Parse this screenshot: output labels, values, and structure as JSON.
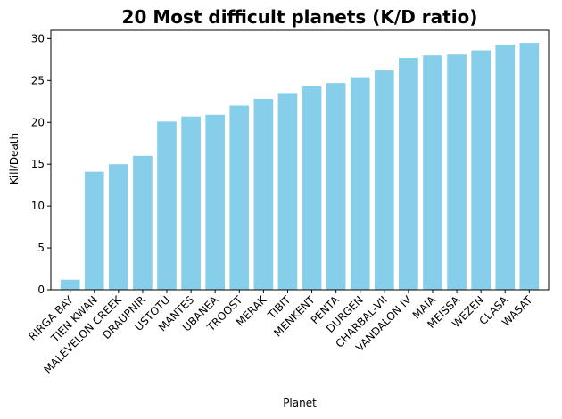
{
  "chart_data": {
    "type": "bar",
    "title": "20 Most difficult planets (K/D ratio)",
    "xlabel": "Planet",
    "ylabel": "Kill/Death",
    "categories": [
      "RIRGA BAY",
      "TIEN KWAN",
      "MALEVELON CREEK",
      "DRAUPNIR",
      "USTOTU",
      "MANTES",
      "UBANEA",
      "TROOST",
      "MERAK",
      "TIBIT",
      "MENKENT",
      "PENTA",
      "DURGEN",
      "CHARBAL-VII",
      "VANDALON IV",
      "MAIA",
      "MEISSA",
      "WEZEN",
      "CLASA",
      "WASAT"
    ],
    "values": [
      1.2,
      14.1,
      15.0,
      16.0,
      20.1,
      20.7,
      20.9,
      22.0,
      22.8,
      23.5,
      24.3,
      24.7,
      25.4,
      26.2,
      27.7,
      28.0,
      28.1,
      28.6,
      29.3,
      29.5
    ],
    "ylim": [
      0,
      31
    ],
    "yticks": [
      0,
      5,
      10,
      15,
      20,
      25,
      30
    ],
    "bar_color": "#87ceeb",
    "grid": false,
    "legend": "none"
  }
}
